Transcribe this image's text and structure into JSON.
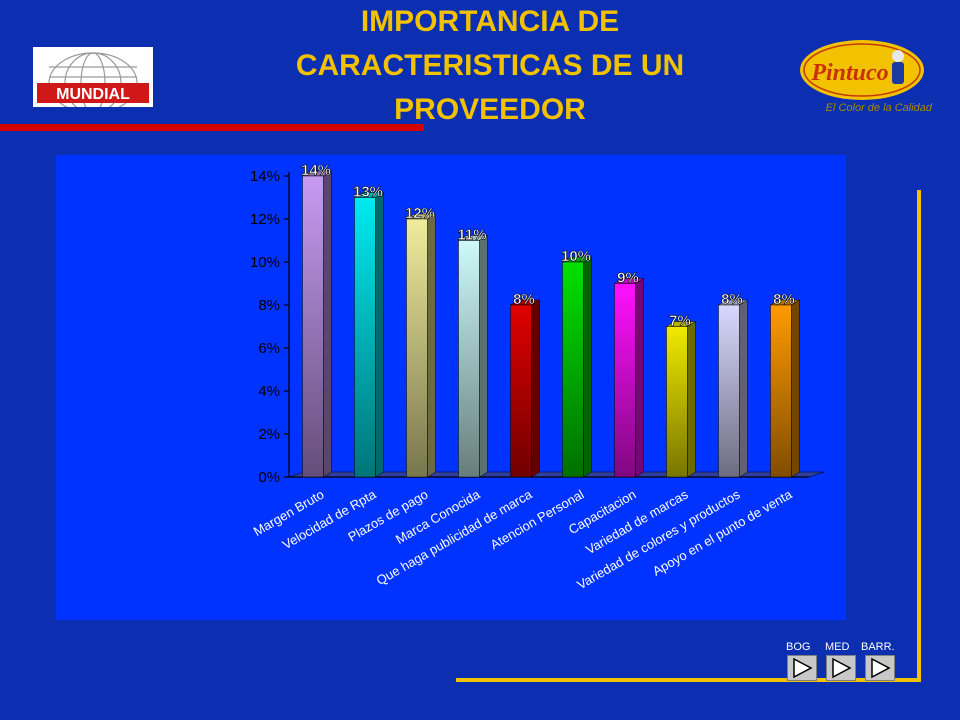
{
  "header": {
    "title_lines": [
      "IMPORTANCIA DE",
      "CARACTERISTICAS DE UN",
      "PROVEEDOR"
    ],
    "left_logo_text": "MUNDIAL",
    "right_logo_text": "Pintuco",
    "slogan": "El Color de la Calidad"
  },
  "nav": {
    "labels": [
      "BOG",
      "MED",
      "BARR."
    ]
  },
  "colors": {
    "background": "#0b2fb0",
    "chart_panel": "#0033ff",
    "title": "#f2c100",
    "accent_line": "#d40000"
  },
  "chart_data": {
    "type": "bar",
    "title": "",
    "xlabel": "",
    "ylabel": "",
    "ylim": [
      0,
      14
    ],
    "ytick_labels": [
      "0%",
      "2%",
      "4%",
      "6%",
      "8%",
      "10%",
      "12%",
      "14%"
    ],
    "ytick_values": [
      0,
      2,
      4,
      6,
      8,
      10,
      12,
      14
    ],
    "categories": [
      "Margen Bruto",
      "Velocidad de Rpta",
      "Plazos de pago",
      "Marca Conocida",
      "Que haga publicidad de marca",
      "Atencion Personal",
      "Capacitacion",
      "Variedad de marcas",
      "Variedad de colores y productos",
      "Apoyo en el punto de venta"
    ],
    "values": [
      14,
      13,
      12,
      11,
      8,
      10,
      9,
      7,
      8,
      8
    ],
    "data_labels": [
      "14%",
      "13%",
      "12%",
      "11%",
      "8%",
      "10%",
      "9%",
      "7%",
      "8%",
      "8%"
    ],
    "bar_colors": [
      "#c79bf2",
      "#00eaf0",
      "#f0ec9c",
      "#cdfafa",
      "#e00000",
      "#00e000",
      "#ff10ff",
      "#f0ea00",
      "#d8d8ff",
      "#ff9a00"
    ],
    "grid": false,
    "legend": "none"
  }
}
